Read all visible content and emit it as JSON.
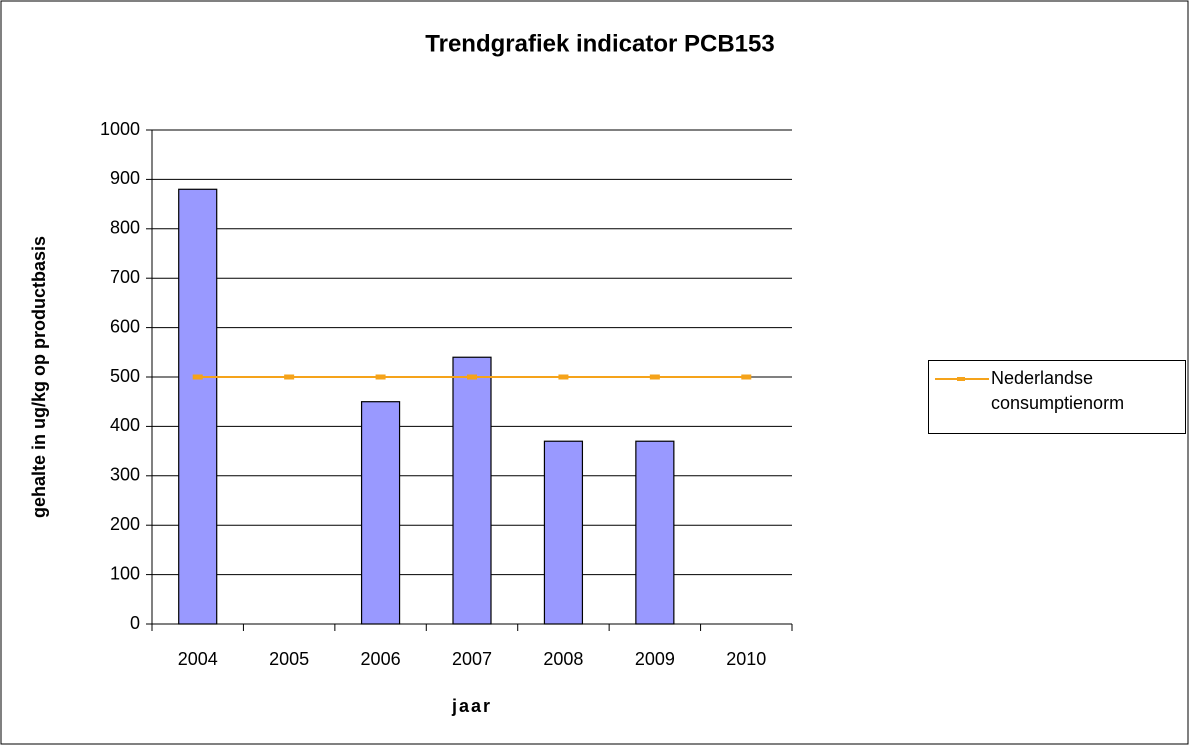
{
  "chart_data": {
    "type": "bar",
    "title": "Trendgrafiek indicator PCB153",
    "x_label": "jaar",
    "y_label": "gehalte in ug/kg op productbasis",
    "categories": [
      "2004",
      "2005",
      "2006",
      "2007",
      "2008",
      "2009",
      "2010"
    ],
    "series": [
      {
        "type": "bar",
        "color": "#9999ff",
        "values": [
          880,
          null,
          450,
          540,
          370,
          370,
          null
        ]
      },
      {
        "type": "line",
        "name": "Nederlandse consumptienorm",
        "color": "#f5a31a",
        "values": [
          500,
          500,
          500,
          500,
          500,
          500,
          500
        ]
      }
    ],
    "ylim": [
      0,
      1000
    ],
    "yticks": [
      0,
      100,
      200,
      300,
      400,
      500,
      600,
      700,
      800,
      900,
      1000
    ],
    "grid": true,
    "legend": "right"
  }
}
